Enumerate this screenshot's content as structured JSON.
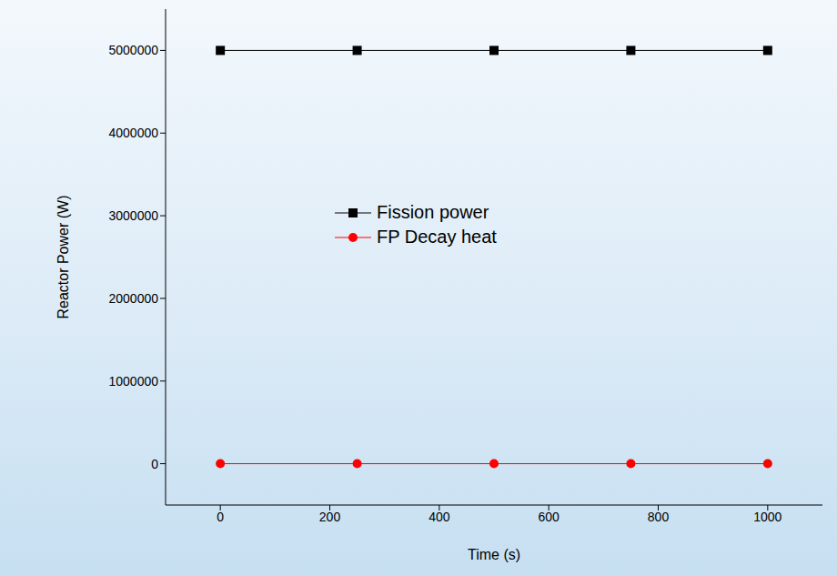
{
  "chart_data": {
    "type": "line",
    "x_label": "Time (s)",
    "y_label": "Reactor Power (W)",
    "x": [
      0,
      250,
      500,
      750,
      1000
    ],
    "series": [
      {
        "name": "Fission power",
        "color": "#000000",
        "marker": "square",
        "values": [
          5000000,
          5000000,
          5000000,
          5000000,
          5000000
        ]
      },
      {
        "name": "FP Decay heat",
        "color": "#ff0000",
        "marker": "circle",
        "values": [
          0,
          0,
          0,
          0,
          0
        ]
      }
    ],
    "xlim": [
      -100,
      1100
    ],
    "xticks": [
      0,
      200,
      400,
      600,
      800,
      1000
    ],
    "ylim": [
      -500000,
      5500000
    ],
    "yticks": [
      0,
      1000000,
      2000000,
      3000000,
      4000000,
      5000000
    ],
    "grid": false,
    "legend": "center"
  }
}
